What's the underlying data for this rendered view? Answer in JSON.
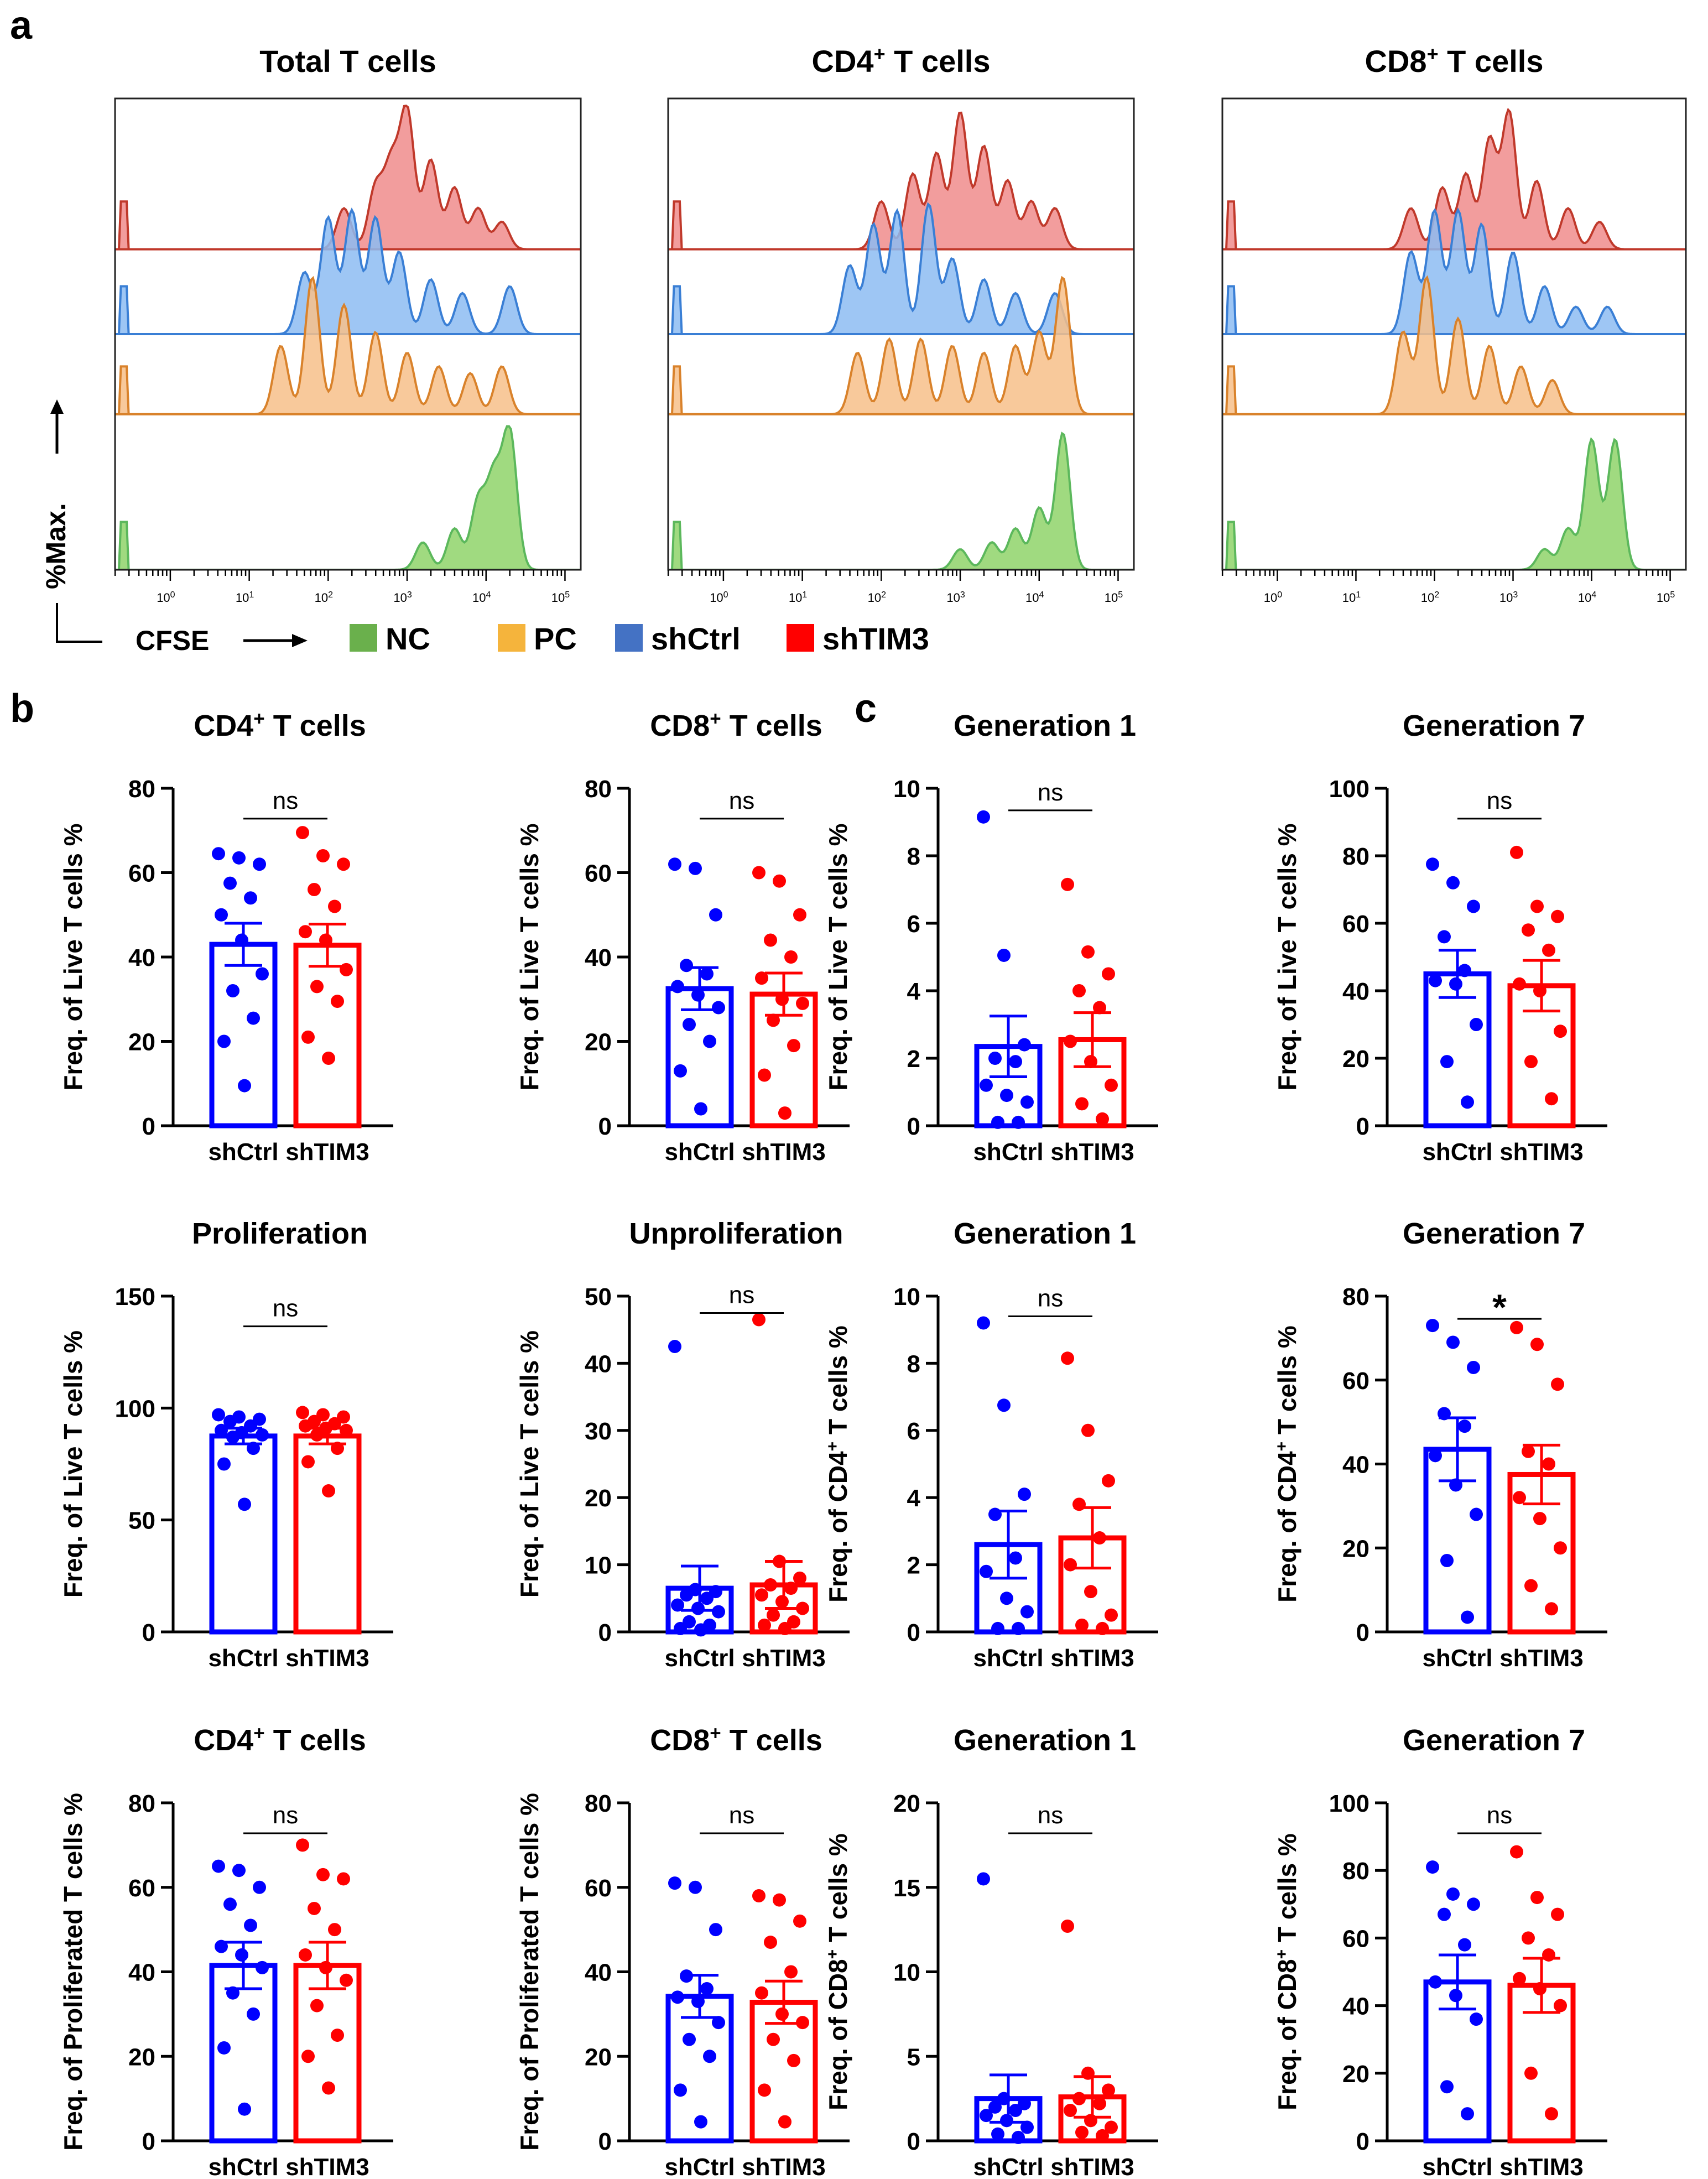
{
  "panel_letters": {
    "a": "a",
    "b": "b",
    "c": "c"
  },
  "legend": {
    "y_label": "%Max.",
    "x_label": "CFSE",
    "items": [
      {
        "name": "NC",
        "color": "#6ab04c"
      },
      {
        "name": "PC",
        "color": "#f5b43c"
      },
      {
        "name": "shCtrl",
        "color": "#4472c4"
      },
      {
        "name": "shTIM3",
        "color": "#ff0000"
      }
    ]
  },
  "histogram_ticks": {
    "base": "10",
    "exponents": [
      "0",
      "1",
      "2",
      "3",
      "4",
      "5"
    ]
  },
  "colors": {
    "shCtrl": "#0000ff",
    "shTIM3": "#ff0000",
    "NC_fill": "#8fd46a",
    "PC_fill": "#f7c08a",
    "shCtrl_fill": "#8dbcf2",
    "shTIM3_fill": "#f08c8c"
  },
  "chart_data": [
    {
      "type": "area",
      "panel": "a",
      "title": "Total T cells",
      "title_sup": "",
      "tracks": [
        {
          "name": "shTIM3",
          "peaks": [
            [
              2.2,
              0.3
            ],
            [
              2.6,
              0.45
            ],
            [
              2.8,
              0.6
            ],
            [
              3.0,
              1.0
            ],
            [
              3.3,
              0.65
            ],
            [
              3.6,
              0.45
            ],
            [
              3.9,
              0.3
            ],
            [
              4.2,
              0.2
            ]
          ]
        },
        {
          "name": "shCtrl",
          "peaks": [
            [
              1.7,
              0.45
            ],
            [
              2.0,
              0.85
            ],
            [
              2.3,
              0.9
            ],
            [
              2.6,
              0.85
            ],
            [
              2.9,
              0.6
            ],
            [
              3.3,
              0.4
            ],
            [
              3.7,
              0.3
            ],
            [
              4.3,
              0.35
            ]
          ]
        },
        {
          "name": "PC",
          "peaks": [
            [
              1.4,
              0.5
            ],
            [
              1.8,
              1.0
            ],
            [
              2.2,
              0.8
            ],
            [
              2.6,
              0.6
            ],
            [
              3.0,
              0.45
            ],
            [
              3.4,
              0.35
            ],
            [
              3.8,
              0.3
            ],
            [
              4.2,
              0.35
            ]
          ]
        },
        {
          "name": "NC",
          "peaks": [
            [
              3.2,
              0.2
            ],
            [
              3.6,
              0.3
            ],
            [
              3.9,
              0.5
            ],
            [
              4.1,
              0.65
            ],
            [
              4.3,
              1.0
            ]
          ]
        }
      ]
    },
    {
      "type": "area",
      "panel": "a",
      "title": "CD4",
      "title_sup": "+",
      "title_suffix": " T cells",
      "tracks": [
        {
          "name": "shTIM3",
          "peaks": [
            [
              2.0,
              0.35
            ],
            [
              2.4,
              0.55
            ],
            [
              2.7,
              0.7
            ],
            [
              3.0,
              1.0
            ],
            [
              3.3,
              0.75
            ],
            [
              3.6,
              0.5
            ],
            [
              3.9,
              0.35
            ],
            [
              4.2,
              0.3
            ]
          ]
        },
        {
          "name": "shCtrl",
          "peaks": [
            [
              1.6,
              0.5
            ],
            [
              1.9,
              0.8
            ],
            [
              2.2,
              0.9
            ],
            [
              2.6,
              0.95
            ],
            [
              2.9,
              0.55
            ],
            [
              3.3,
              0.4
            ],
            [
              3.7,
              0.3
            ],
            [
              4.2,
              0.3
            ]
          ]
        },
        {
          "name": "PC",
          "peaks": [
            [
              1.7,
              0.45
            ],
            [
              2.1,
              0.55
            ],
            [
              2.5,
              0.55
            ],
            [
              2.9,
              0.5
            ],
            [
              3.3,
              0.45
            ],
            [
              3.7,
              0.5
            ],
            [
              4.0,
              0.6
            ],
            [
              4.3,
              1.0
            ]
          ]
        },
        {
          "name": "NC",
          "peaks": [
            [
              3.0,
              0.15
            ],
            [
              3.4,
              0.2
            ],
            [
              3.7,
              0.3
            ],
            [
              4.0,
              0.45
            ],
            [
              4.3,
              1.0
            ]
          ]
        }
      ]
    },
    {
      "type": "area",
      "panel": "a",
      "title": "CD8",
      "title_sup": "+",
      "title_suffix": " T cells",
      "tracks": [
        {
          "name": "shTIM3",
          "peaks": [
            [
              1.7,
              0.3
            ],
            [
              2.1,
              0.45
            ],
            [
              2.4,
              0.55
            ],
            [
              2.7,
              0.8
            ],
            [
              2.95,
              1.0
            ],
            [
              3.3,
              0.5
            ],
            [
              3.7,
              0.3
            ],
            [
              4.1,
              0.2
            ]
          ]
        },
        {
          "name": "shCtrl",
          "peaks": [
            [
              1.7,
              0.6
            ],
            [
              2.0,
              0.9
            ],
            [
              2.3,
              0.9
            ],
            [
              2.6,
              0.8
            ],
            [
              3.0,
              0.6
            ],
            [
              3.4,
              0.35
            ],
            [
              3.8,
              0.2
            ],
            [
              4.2,
              0.2
            ]
          ]
        },
        {
          "name": "PC",
          "peaks": [
            [
              1.6,
              0.6
            ],
            [
              1.9,
              1.0
            ],
            [
              2.3,
              0.7
            ],
            [
              2.7,
              0.5
            ],
            [
              3.1,
              0.35
            ],
            [
              3.5,
              0.25
            ]
          ]
        },
        {
          "name": "NC",
          "peaks": [
            [
              3.4,
              0.15
            ],
            [
              3.7,
              0.3
            ],
            [
              4.0,
              0.95
            ],
            [
              4.3,
              0.95
            ]
          ]
        }
      ]
    },
    {
      "type": "bar",
      "panel": "b",
      "title": "CD4",
      "title_sup": "+",
      "title_suffix": " T cells",
      "ylabel": "Freq. of Live T cells %",
      "ylabel_sup": "",
      "ylim": [
        0,
        80
      ],
      "yticks": [
        0,
        20,
        40,
        60,
        80
      ],
      "categories": [
        "shCtrl",
        "shTIM3"
      ],
      "values": [
        43,
        42.8
      ],
      "sem": [
        5,
        5
      ],
      "points": [
        [
          64.5,
          63.5,
          62,
          57.5,
          54,
          50,
          44,
          36,
          32,
          25.5,
          20,
          9.5
        ],
        [
          69.5,
          64,
          62,
          56,
          52,
          46,
          44,
          37,
          33,
          29.5,
          21,
          16
        ]
      ],
      "significance": "ns"
    },
    {
      "type": "bar",
      "panel": "b",
      "title": "CD8",
      "title_sup": "+",
      "title_suffix": " T cells",
      "ylabel": "Freq. of Live T cells %",
      "ylabel_sup": "",
      "ylim": [
        0,
        80
      ],
      "yticks": [
        0,
        20,
        40,
        60,
        80
      ],
      "categories": [
        "shCtrl",
        "shTIM3"
      ],
      "values": [
        32.5,
        31.2
      ],
      "sem": [
        5,
        5
      ],
      "points": [
        [
          62,
          61,
          50,
          38,
          36,
          33,
          31,
          28,
          24,
          20,
          13,
          4
        ],
        [
          60,
          58,
          50,
          44,
          40,
          35,
          30,
          29,
          25,
          19,
          12,
          3
        ]
      ],
      "significance": "ns"
    },
    {
      "type": "bar",
      "panel": "c",
      "title": "Generation 1",
      "title_sup": "",
      "ylabel": "Freq. of Live T cells %",
      "ylabel_sup": "",
      "ylim": [
        0,
        10
      ],
      "yticks": [
        0,
        2,
        4,
        6,
        8,
        10
      ],
      "categories": [
        "shCtrl",
        "shTIM3"
      ],
      "values": [
        2.35,
        2.55
      ],
      "sem": [
        0.9,
        0.8
      ],
      "points": [
        [
          9.15,
          5.05,
          2.4,
          2.0,
          1.9,
          1.2,
          0.9,
          0.7,
          0.1,
          0.1
        ],
        [
          7.15,
          5.15,
          4.5,
          4.0,
          3.5,
          2.5,
          1.9,
          1.2,
          0.65,
          0.2
        ]
      ],
      "significance": "ns"
    },
    {
      "type": "bar",
      "panel": "c",
      "title": "Generation 7",
      "title_sup": "",
      "ylabel": "Freq. of Live T cells %",
      "ylabel_sup": "",
      "ylim": [
        0,
        100
      ],
      "yticks": [
        0,
        20,
        40,
        60,
        80,
        100
      ],
      "categories": [
        "shCtrl",
        "shTIM3"
      ],
      "values": [
        45,
        41.5
      ],
      "sem": [
        7,
        7.5
      ],
      "points": [
        [
          77.5,
          72,
          65,
          56,
          46,
          43,
          42,
          30,
          19,
          7
        ],
        [
          81,
          65,
          62,
          58,
          52,
          42,
          40,
          28,
          19,
          8
        ]
      ],
      "significance": "ns"
    },
    {
      "type": "bar",
      "panel": "b",
      "title": "Proliferation",
      "title_sup": "",
      "ylabel": "Freq. of Live T cells %",
      "ylabel_sup": "",
      "ylim": [
        0,
        150
      ],
      "yticks": [
        0,
        50,
        100,
        150
      ],
      "categories": [
        "shCtrl",
        "shTIM3"
      ],
      "values": [
        87.5,
        87.5
      ],
      "sem": [
        3.5,
        3.5
      ],
      "points": [
        [
          97,
          96,
          95,
          94,
          92,
          90,
          89,
          88,
          87,
          82,
          75,
          57
        ],
        [
          98,
          97,
          96,
          94,
          93,
          92,
          91,
          90,
          88,
          82,
          76,
          63
        ]
      ],
      "significance": "ns"
    },
    {
      "type": "bar",
      "panel": "b",
      "title": "Unproliferation",
      "title_sup": "",
      "ylabel": "Freq. of Live T cells %",
      "ylabel_sup": "",
      "ylim": [
        0,
        50
      ],
      "yticks": [
        0,
        10,
        20,
        30,
        40,
        50
      ],
      "categories": [
        "shCtrl",
        "shTIM3"
      ],
      "values": [
        6.5,
        7.0
      ],
      "sem": [
        3.3,
        3.5
      ],
      "points": [
        [
          42.5,
          6.3,
          6.0,
          5.5,
          5.0,
          4.0,
          3.5,
          3.0,
          1.5,
          1.0,
          0.5,
          0.3
        ],
        [
          46.5,
          10.5,
          8.0,
          7.0,
          6.5,
          5.5,
          4.5,
          3.5,
          2.5,
          1.5,
          1.0,
          0.5
        ]
      ],
      "significance": "ns"
    },
    {
      "type": "bar",
      "panel": "c",
      "title": "Generation 1",
      "title_sup": "",
      "ylabel": "Freq. of CD4",
      "ylabel_sup": "+",
      "ylabel_suffix": " T cells %",
      "ylim": [
        0,
        10
      ],
      "yticks": [
        0,
        2,
        4,
        6,
        8,
        10
      ],
      "categories": [
        "shCtrl",
        "shTIM3"
      ],
      "values": [
        2.6,
        2.8
      ],
      "sem": [
        1.0,
        0.9
      ],
      "points": [
        [
          9.2,
          6.75,
          4.1,
          3.5,
          2.2,
          1.8,
          1.0,
          0.6,
          0.1,
          0.1
        ],
        [
          8.15,
          6.0,
          4.5,
          3.8,
          2.8,
          2.0,
          1.2,
          0.5,
          0.2,
          0.1
        ]
      ],
      "significance": "ns"
    },
    {
      "type": "bar",
      "panel": "c",
      "title": "Generation 7",
      "title_sup": "",
      "ylabel": "Freq. of CD4",
      "ylabel_sup": "+",
      "ylabel_suffix": " T cells %",
      "ylim": [
        0,
        80
      ],
      "yticks": [
        0,
        20,
        40,
        60,
        80
      ],
      "categories": [
        "shCtrl",
        "shTIM3"
      ],
      "values": [
        43.5,
        37.5
      ],
      "sem": [
        7.5,
        7
      ],
      "points": [
        [
          73,
          69,
          63,
          52,
          49,
          42,
          35,
          28,
          17,
          3.5
        ],
        [
          72.5,
          68.5,
          59,
          43,
          40,
          32,
          27,
          20,
          11,
          5.5
        ]
      ],
      "significance": "*"
    },
    {
      "type": "bar",
      "panel": "b",
      "title": "CD4",
      "title_sup": "+",
      "title_suffix": " T cells",
      "ylabel": "Freq. of Proliferated T cells %",
      "ylabel_sup": "",
      "ylim": [
        0,
        80
      ],
      "yticks": [
        0,
        20,
        40,
        60,
        80
      ],
      "categories": [
        "shCtrl",
        "shTIM3"
      ],
      "values": [
        41.5,
        41.5
      ],
      "sem": [
        5.5,
        5.5
      ],
      "points": [
        [
          65,
          64,
          60,
          56,
          51,
          46,
          44,
          41,
          35,
          30,
          22,
          7.5
        ],
        [
          70,
          63,
          62,
          55,
          50,
          44,
          41,
          38,
          32,
          25,
          20,
          12.5
        ]
      ],
      "significance": "ns"
    },
    {
      "type": "bar",
      "panel": "b",
      "title": "CD8",
      "title_sup": "+",
      "title_suffix": " T cells",
      "ylabel": "Freq. of Proliferated T cells %",
      "ylabel_sup": "",
      "ylim": [
        0,
        80
      ],
      "yticks": [
        0,
        20,
        40,
        60,
        80
      ],
      "categories": [
        "shCtrl",
        "shTIM3"
      ],
      "values": [
        34.2,
        32.8
      ],
      "sem": [
        5,
        5
      ],
      "points": [
        [
          61,
          60,
          50,
          39,
          36,
          34,
          33,
          28,
          24,
          20,
          12,
          4.5
        ],
        [
          58,
          57,
          52,
          47,
          40,
          35,
          30,
          28,
          24,
          19,
          12,
          4.5
        ]
      ],
      "significance": "ns"
    },
    {
      "type": "bar",
      "panel": "c",
      "title": "Generation 1",
      "title_sup": "",
      "ylabel": "Freq. of CD8",
      "ylabel_sup": "+",
      "ylabel_suffix": " T cells %",
      "ylim": [
        0,
        20
      ],
      "yticks": [
        0,
        5,
        10,
        15,
        20
      ],
      "categories": [
        "shCtrl",
        "shTIM3"
      ],
      "values": [
        2.5,
        2.6
      ],
      "sem": [
        1.4,
        1.2
      ],
      "points": [
        [
          15.5,
          2.5,
          2.2,
          2.0,
          1.8,
          1.5,
          1.2,
          0.8,
          0.4,
          0.2
        ],
        [
          12.7,
          4.0,
          3.0,
          2.5,
          2.2,
          1.8,
          1.2,
          0.8,
          0.5,
          0.3
        ]
      ],
      "significance": "ns"
    },
    {
      "type": "bar",
      "panel": "c",
      "title": "Generation 7",
      "title_sup": "",
      "ylabel": "Freq. of CD8",
      "ylabel_sup": "+",
      "ylabel_suffix": " T cells %",
      "ylim": [
        0,
        100
      ],
      "yticks": [
        0,
        20,
        40,
        60,
        80,
        100
      ],
      "categories": [
        "shCtrl",
        "shTIM3"
      ],
      "values": [
        47,
        46
      ],
      "sem": [
        8,
        8
      ],
      "points": [
        [
          81,
          73,
          70,
          67,
          58,
          47,
          43,
          36,
          16,
          8
        ],
        [
          85.5,
          72,
          67,
          60,
          55,
          48,
          45,
          40,
          20,
          8
        ]
      ],
      "significance": "ns"
    }
  ]
}
